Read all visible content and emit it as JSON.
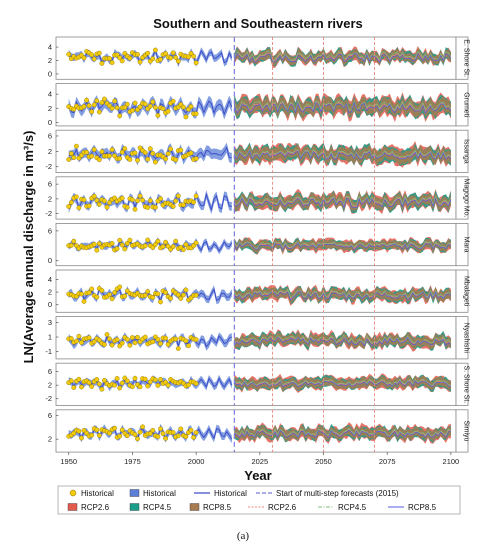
{
  "caption": "(a)",
  "colors": {
    "historical_point": "#f2cc0c",
    "historical_band": "#5b7fd6",
    "historical_line": "#3a46c8",
    "forecast_start": "#7b7be0",
    "rcp26": "#e35b4f",
    "rcp45": "#1a9e8a",
    "rcp85": "#a87a50",
    "rcp_line": "#e8887a",
    "rcp45_line": "#7fbf7f",
    "rcp85_line": "#5a5ae0",
    "vline": "#e8887a"
  },
  "chart_data": {
    "type": "line",
    "title": "Southern and Southeastern rivers",
    "xlabel": "Year",
    "ylabel": "LN(Average annual discharge in m³/s)",
    "xlim": [
      1945,
      2102
    ],
    "xticks": [
      1950,
      1975,
      2000,
      2025,
      2050,
      2075,
      2100
    ],
    "forecast_start_year": 2015,
    "reference_years": [
      2030,
      2050,
      2070
    ],
    "historical_years": [
      1950,
      2000
    ],
    "legend": {
      "position": "bottom",
      "row1": [
        {
          "label": "Historical",
          "type": "point"
        },
        {
          "label": "Historical",
          "type": "band"
        },
        {
          "label": "Historical",
          "type": "line"
        },
        {
          "label": "Start of multi-step forecasts (2015)",
          "type": "dashed"
        }
      ],
      "row2": [
        {
          "label": "RCP2.6",
          "type": "band26"
        },
        {
          "label": "RCP4.5",
          "type": "band45"
        },
        {
          "label": "RCP8.5",
          "type": "band85"
        },
        {
          "label": "RCP2.6",
          "type": "line26"
        },
        {
          "label": "RCP4.5",
          "type": "line45"
        },
        {
          "label": "RCP8.5",
          "type": "line85"
        }
      ]
    },
    "panels": [
      {
        "name": "E. Shore St.",
        "ylim": [
          -0.8,
          5.5
        ],
        "ticks": [
          0,
          2,
          4
        ],
        "mean": 2.5,
        "amp": 1.0,
        "band": 0.9,
        "seed": 1
      },
      {
        "name": "Grumeti",
        "ylim": [
          -0.5,
          5.5
        ],
        "ticks": [
          0,
          2,
          4
        ],
        "mean": 2.2,
        "amp": 1.0,
        "band": 1.3,
        "seed": 2
      },
      {
        "name": "Issanga",
        "ylim": [
          -3.5,
          7.5
        ],
        "ticks": [
          -2,
          2,
          6
        ],
        "mean": 1.2,
        "amp": 1.6,
        "band": 2.2,
        "seed": 3
      },
      {
        "name": "Magogo Mo.",
        "ylim": [
          -3.5,
          8.0
        ],
        "ticks": [
          -2,
          2,
          6
        ],
        "mean": 1.2,
        "amp": 2.0,
        "band": 2.0,
        "seed": 4
      },
      {
        "name": "Mara",
        "ylim": [
          -1.0,
          7.5
        ],
        "ticks": [
          0,
          6
        ],
        "mean": 3.0,
        "amp": 1.0,
        "band": 1.1,
        "seed": 5
      },
      {
        "name": "Mbalageti",
        "ylim": [
          -1.2,
          5.5
        ],
        "ticks": [
          0,
          2,
          4
        ],
        "mean": 1.6,
        "amp": 0.9,
        "band": 1.0,
        "seed": 6
      },
      {
        "name": "Nyashishi",
        "ylim": [
          -2.0,
          3.8
        ],
        "ticks": [
          -1,
          1,
          3
        ],
        "mean": 0.5,
        "amp": 0.8,
        "band": 0.9,
        "seed": 7
      },
      {
        "name": "S. Shore St.",
        "ylim": [
          -4.0,
          8.5
        ],
        "ticks": [
          -2,
          2,
          6
        ],
        "mean": 2.6,
        "amp": 1.4,
        "band": 1.8,
        "seed": 8
      },
      {
        "name": "Simiyu",
        "ylim": [
          -0.2,
          7.0
        ],
        "ticks": [
          2,
          6
        ],
        "mean": 3.0,
        "amp": 0.9,
        "band": 1.1,
        "seed": 9
      }
    ]
  }
}
